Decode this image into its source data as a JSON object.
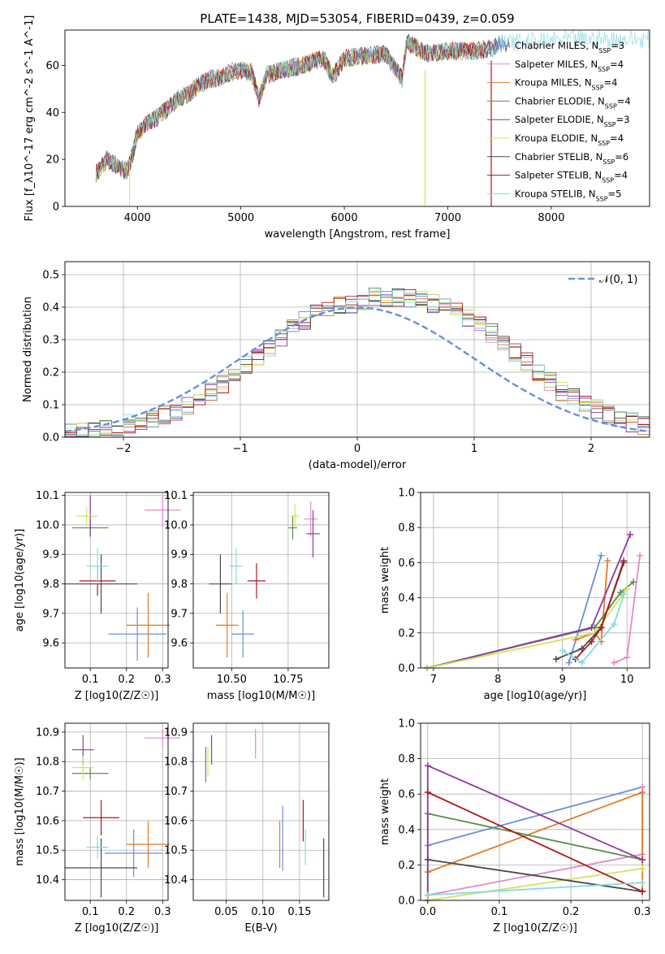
{
  "colors": {
    "series": [
      "#6b8fd9",
      "#e38ac8",
      "#e07b27",
      "#5a8e4a",
      "#8e3a9d",
      "#d1e45c",
      "#4a4a4a",
      "#a81c1c",
      "#88d8e0"
    ]
  },
  "chart_data": [
    {
      "id": "spectrum",
      "type": "line",
      "title": "PLATE=1438, MJD=53054, FIBERID=0439, z=0.059",
      "xlabel": "wavelength [Angstrom, rest frame]",
      "ylabel": "Flux [f_λ10^-17 erg cm^-2 s^-1 A^-1]",
      "xlim": [
        3300,
        8950
      ],
      "ylim": [
        0,
        75
      ],
      "xticks": [
        "4000",
        "5000",
        "6000",
        "7000",
        "8000"
      ],
      "yticks": [
        "0",
        "20",
        "40",
        "60"
      ],
      "legend_position": "right",
      "series": [
        {
          "name": "Chabrier MILES, N_SSP=3"
        },
        {
          "name": "Salpeter MILES, N_SSP=4"
        },
        {
          "name": "Kroupa MILES, N_SSP=4"
        },
        {
          "name": "Chabrier ELODIE, N_SSP=4"
        },
        {
          "name": "Salpeter ELODIE, N_SSP=3"
        },
        {
          "name": "Kroupa ELODIE, N_SSP=4"
        },
        {
          "name": "Chabrier STELIB, N_SSP=6"
        },
        {
          "name": "Salpeter STELIB, N_SSP=4"
        },
        {
          "name": "Kroupa STELIB, N_SSP=5"
        }
      ],
      "envelope": {
        "x": [
          3600,
          3700,
          3800,
          3900,
          3950,
          4000,
          4100,
          4200,
          4300,
          4400,
          4500,
          4600,
          4700,
          4800,
          4900,
          5000,
          5100,
          5175,
          5250,
          5400,
          5600,
          5800,
          5890,
          6000,
          6200,
          6400,
          6560,
          6600,
          6800,
          7000,
          7200,
          7400,
          7500,
          7700,
          7900,
          8100,
          8300,
          8500,
          8700,
          8950
        ],
        "y": [
          14,
          20,
          17,
          15,
          22,
          31,
          36,
          38,
          42,
          46,
          48,
          52,
          54,
          55,
          57,
          58,
          57,
          46,
          56,
          58,
          60,
          63,
          55,
          63,
          64,
          65,
          54,
          70,
          65,
          66,
          66,
          67,
          69,
          70,
          70,
          71,
          71,
          71,
          71,
          71
        ]
      }
    },
    {
      "id": "residuals",
      "type": "bar",
      "xlabel": "(data-model)/error",
      "ylabel": "Normed distribution",
      "xlim": [
        -2.5,
        2.5
      ],
      "ylim": [
        0,
        0.54
      ],
      "xticks": [
        "−2",
        "−1",
        "0",
        "1",
        "2"
      ],
      "yticks": [
        "0.0",
        "0.1",
        "0.2",
        "0.3",
        "0.4",
        "0.5"
      ],
      "grid": true,
      "legend": "𝒩(0, 1)",
      "legend_position": "top-right",
      "bin_width": 0.1,
      "hist_mean": [
        0.01,
        0.015,
        0.02,
        0.025,
        0.03,
        0.04,
        0.05,
        0.06,
        0.07,
        0.08,
        0.1,
        0.12,
        0.14,
        0.16,
        0.19,
        0.22,
        0.25,
        0.28,
        0.31,
        0.34,
        0.36,
        0.38,
        0.39,
        0.4,
        0.41,
        0.42,
        0.43,
        0.43,
        0.43,
        0.43,
        0.42,
        0.41,
        0.4,
        0.39,
        0.37,
        0.34,
        0.32,
        0.29,
        0.26,
        0.23,
        0.2,
        0.17,
        0.14,
        0.12,
        0.1,
        0.085,
        0.07,
        0.055,
        0.045,
        0.035
      ]
    },
    {
      "id": "age_vs_Z",
      "type": "scatter",
      "xlabel": "Z [log10(Z/Z☉)]",
      "ylabel": "age  [log10(age/yr)]",
      "xlim": [
        0.03,
        0.315
      ],
      "ylim": [
        9.515,
        10.11
      ],
      "xticks": [
        "0.1",
        "0.2",
        "0.3"
      ],
      "yticks": [
        "9.6",
        "9.7",
        "9.8",
        "9.9",
        "10.0",
        "10.1"
      ],
      "points": [
        {
          "x": 0.23,
          "y": 9.63,
          "xerr": 0.08,
          "yerr": 0.09
        },
        {
          "x": 0.3,
          "y": 10.05,
          "xerr": 0.05,
          "yerr": 0.05
        },
        {
          "x": 0.26,
          "y": 9.66,
          "xerr": 0.06,
          "yerr": 0.11
        },
        {
          "x": 0.1,
          "y": 9.99,
          "xerr": 0.05,
          "yerr": 0.03
        },
        {
          "x": 0.1,
          "y": 10.03,
          "xerr": 0.02,
          "yerr": 0.07
        },
        {
          "x": 0.09,
          "y": 10.03,
          "xerr": 0.03,
          "yerr": 0.03
        },
        {
          "x": 0.13,
          "y": 9.8,
          "xerr": 0.1,
          "yerr": 0.1
        },
        {
          "x": 0.12,
          "y": 9.81,
          "xerr": 0.05,
          "yerr": 0.05
        },
        {
          "x": 0.12,
          "y": 9.86,
          "xerr": 0.03,
          "yerr": 0.06
        }
      ]
    },
    {
      "id": "age_vs_mass",
      "type": "scatter",
      "xlabel": "mass [log10(M/M☉)]",
      "ylabel": "",
      "xlim": [
        10.33,
        10.93
      ],
      "ylim": [
        9.515,
        10.11
      ],
      "xticks": [
        "10.50",
        "10.75"
      ],
      "yticks": [
        "9.6",
        "9.7",
        "9.8",
        "9.9",
        "10.0",
        "10.1"
      ],
      "points": [
        {
          "x": 10.55,
          "y": 9.63,
          "xerr": 0.05,
          "yerr": 0.08
        },
        {
          "x": 10.85,
          "y": 10.02,
          "xerr": 0.03,
          "yerr": 0.06
        },
        {
          "x": 10.48,
          "y": 9.66,
          "xerr": 0.05,
          "yerr": 0.11
        },
        {
          "x": 10.77,
          "y": 9.99,
          "xerr": 0.02,
          "yerr": 0.04
        },
        {
          "x": 10.86,
          "y": 9.97,
          "xerr": 0.03,
          "yerr": 0.08
        },
        {
          "x": 10.78,
          "y": 10.03,
          "xerr": 0.02,
          "yerr": 0.04
        },
        {
          "x": 10.45,
          "y": 9.8,
          "xerr": 0.05,
          "yerr": 0.1
        },
        {
          "x": 10.61,
          "y": 9.81,
          "xerr": 0.04,
          "yerr": 0.06
        },
        {
          "x": 10.52,
          "y": 9.86,
          "xerr": 0.03,
          "yerr": 0.06
        }
      ]
    },
    {
      "id": "weight_vs_age",
      "type": "line",
      "xlabel": "age  [log10(age/yr)]",
      "ylabel": "mass weight",
      "xlim": [
        6.8,
        10.35
      ],
      "ylim": [
        0,
        1
      ],
      "xticks": [
        "7",
        "8",
        "9",
        "10"
      ],
      "yticks": [
        "0.0",
        "0.2",
        "0.4",
        "0.6",
        "0.8",
        "1.0"
      ],
      "series": [
        {
          "x": [
            9.1,
            9.6
          ],
          "y": [
            0.03,
            0.64
          ]
        },
        {
          "x": [
            9.8,
            10.0,
            10.2
          ],
          "y": [
            0.03,
            0.06,
            0.64
          ]
        },
        {
          "x": [
            9.2,
            9.5,
            9.6,
            9.7
          ],
          "y": [
            0.16,
            0.2,
            0.15,
            0.61
          ]
        },
        {
          "x": [
            6.9,
            9.5,
            9.9,
            10.1
          ],
          "y": [
            0.0,
            0.23,
            0.43,
            0.49
          ]
        },
        {
          "x": [
            6.9,
            9.45,
            10.05
          ],
          "y": [
            0.0,
            0.23,
            0.76
          ]
        },
        {
          "x": [
            6.9,
            9.5,
            10.0
          ],
          "y": [
            0.0,
            0.2,
            0.45
          ]
        },
        {
          "x": [
            8.9,
            9.3,
            9.6,
            9.95
          ],
          "y": [
            0.05,
            0.11,
            0.23,
            0.61
          ]
        },
        {
          "x": [
            9.2,
            9.45,
            9.6,
            9.95
          ],
          "y": [
            0.05,
            0.15,
            0.23,
            0.6
          ]
        },
        {
          "x": [
            9.0,
            9.3,
            9.8,
            9.95
          ],
          "y": [
            0.1,
            0.03,
            0.25,
            0.42
          ]
        }
      ]
    },
    {
      "id": "mass_vs_Z",
      "type": "scatter",
      "xlabel": "Z [log10(Z/Z☉)]",
      "ylabel": "mass [log10(M/M☉)]",
      "xlim": [
        0.03,
        0.315
      ],
      "ylim": [
        10.33,
        10.93
      ],
      "xticks": [
        "0.1",
        "0.2",
        "0.3"
      ],
      "yticks": [
        "10.4",
        "10.5",
        "10.6",
        "10.7",
        "10.8",
        "10.9"
      ],
      "points": [
        {
          "x": 0.22,
          "y": 10.49,
          "xerr": 0.08,
          "yerr": 0.08
        },
        {
          "x": 0.3,
          "y": 10.88,
          "xerr": 0.05,
          "yerr": 0.03
        },
        {
          "x": 0.26,
          "y": 10.52,
          "xerr": 0.06,
          "yerr": 0.08
        },
        {
          "x": 0.1,
          "y": 10.76,
          "xerr": 0.05,
          "yerr": 0.02
        },
        {
          "x": 0.08,
          "y": 10.84,
          "xerr": 0.03,
          "yerr": 0.05
        },
        {
          "x": 0.08,
          "y": 10.78,
          "xerr": 0.03,
          "yerr": 0.04
        },
        {
          "x": 0.13,
          "y": 10.44,
          "xerr": 0.1,
          "yerr": 0.1
        },
        {
          "x": 0.13,
          "y": 10.61,
          "xerr": 0.05,
          "yerr": 0.06
        },
        {
          "x": 0.12,
          "y": 10.51,
          "xerr": 0.03,
          "yerr": 0.04
        }
      ]
    },
    {
      "id": "mass_vs_ebv",
      "type": "scatter",
      "xlabel": "E(B-V)",
      "ylabel": "",
      "xlim": [
        0.005,
        0.19
      ],
      "ylim": [
        10.33,
        10.93
      ],
      "xticks": [
        "0.05",
        "0.10",
        "0.15"
      ],
      "yticks": [
        "10.4",
        "10.5",
        "10.6",
        "10.7",
        "10.8",
        "10.9"
      ],
      "points": [
        {
          "x": 0.127,
          "y": 10.54,
          "xerr": 0,
          "yerr": 0.11
        },
        {
          "x": 0.09,
          "y": 10.86,
          "xerr": 0,
          "yerr": 0.05
        },
        {
          "x": 0.123,
          "y": 10.52,
          "xerr": 0,
          "yerr": 0.08
        },
        {
          "x": 0.022,
          "y": 10.79,
          "xerr": 0,
          "yerr": 0.06
        },
        {
          "x": 0.03,
          "y": 10.84,
          "xerr": 0,
          "yerr": 0.05
        },
        {
          "x": 0.025,
          "y": 10.8,
          "xerr": 0,
          "yerr": 0.05
        },
        {
          "x": 0.183,
          "y": 10.44,
          "xerr": 0,
          "yerr": 0.1
        },
        {
          "x": 0.155,
          "y": 10.6,
          "xerr": 0,
          "yerr": 0.07
        },
        {
          "x": 0.158,
          "y": 10.51,
          "xerr": 0,
          "yerr": 0.06
        }
      ]
    },
    {
      "id": "weight_vs_Z",
      "type": "line",
      "xlabel": "Z [log10(Z/Z☉)]",
      "ylabel": "mass weight",
      "xlim": [
        -0.01,
        0.31
      ],
      "ylim": [
        0,
        1
      ],
      "xticks": [
        "0.0",
        "0.1",
        "0.2",
        "0.3"
      ],
      "yticks": [
        "0.0",
        "0.2",
        "0.4",
        "0.6",
        "0.8",
        "1.0"
      ],
      "series": [
        {
          "x": [
            0.0,
            0.3
          ],
          "y": [
            0.31,
            0.64
          ]
        },
        {
          "x": [
            0.0,
            0.3,
            0.3
          ],
          "y": [
            0.03,
            0.26,
            0.64
          ]
        },
        {
          "x": [
            0.0,
            0.3,
            0.3
          ],
          "y": [
            0.16,
            0.61,
            0.05
          ]
        },
        {
          "x": [
            0.0,
            0.0,
            0.3
          ],
          "y": [
            0.0,
            0.49,
            0.23
          ]
        },
        {
          "x": [
            0.0,
            0.0,
            0.3
          ],
          "y": [
            0.0,
            0.76,
            0.23
          ]
        },
        {
          "x": [
            0.0,
            0.3
          ],
          "y": [
            0.0,
            0.18
          ]
        },
        {
          "x": [
            0.0,
            0.3
          ],
          "y": [
            0.23,
            0.05
          ]
        },
        {
          "x": [
            0.0,
            0.3
          ],
          "y": [
            0.61,
            0.05
          ]
        },
        {
          "x": [
            0.0,
            0.3
          ],
          "y": [
            0.03,
            0.1
          ]
        }
      ]
    }
  ]
}
